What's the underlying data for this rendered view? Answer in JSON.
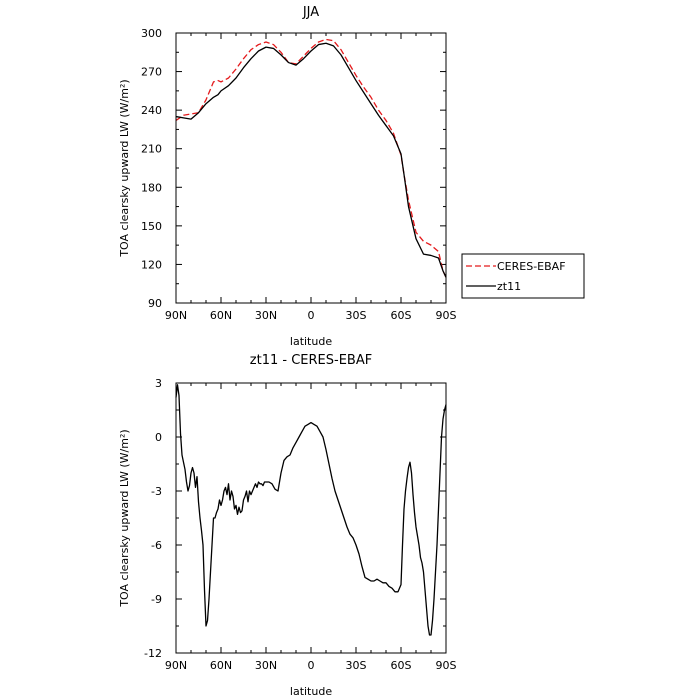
{
  "chart_data": [
    {
      "type": "line",
      "title": "JJA",
      "xlabel": "latitude",
      "ylabel": "TOA clearsky upward LW (W/m²)",
      "xlim": [
        90,
        -90
      ],
      "ylim": [
        90,
        300
      ],
      "x_tick_values": [
        90,
        60,
        30,
        0,
        -30,
        -60,
        -90
      ],
      "x_tick_labels": [
        "90N",
        "60N",
        "30N",
        "0",
        "30S",
        "60S",
        "90S"
      ],
      "y_ticks": [
        90,
        120,
        150,
        180,
        210,
        240,
        270,
        300
      ],
      "legend": {
        "placement": "right",
        "entries": [
          "CERES-EBAF",
          "zt11"
        ]
      },
      "series": [
        {
          "name": "CERES-EBAF",
          "color": "#e41a1c",
          "dash": "dashed",
          "x": [
            90,
            85,
            80,
            75,
            70,
            65,
            62,
            60,
            55,
            50,
            45,
            40,
            35,
            30,
            25,
            20,
            15,
            10,
            5,
            0,
            -5,
            -10,
            -15,
            -20,
            -25,
            -30,
            -35,
            -40,
            -45,
            -50,
            -55,
            -60,
            -62,
            -65,
            -70,
            -75,
            -80,
            -85,
            -88,
            -90
          ],
          "values": [
            232,
            236,
            237,
            238,
            248,
            262,
            263,
            262,
            265,
            272,
            280,
            287,
            291,
            293,
            291,
            285,
            277,
            276,
            282,
            288,
            293,
            295,
            294,
            287,
            277,
            267,
            258,
            250,
            240,
            232,
            222,
            205,
            190,
            170,
            145,
            138,
            135,
            130,
            115,
            110
          ]
        },
        {
          "name": "zt11",
          "color": "#000000",
          "dash": "solid",
          "x": [
            90,
            85,
            80,
            75,
            70,
            65,
            62,
            60,
            55,
            50,
            45,
            40,
            35,
            30,
            25,
            20,
            15,
            10,
            5,
            0,
            -5,
            -10,
            -15,
            -20,
            -25,
            -30,
            -35,
            -40,
            -45,
            -50,
            -55,
            -60,
            -62,
            -65,
            -70,
            -75,
            -80,
            -85,
            -88,
            -90
          ],
          "values": [
            235,
            234,
            233,
            238,
            245,
            250,
            252,
            255,
            259,
            265,
            273,
            280,
            286,
            289,
            288,
            283,
            277,
            275,
            280,
            286,
            291,
            292,
            290,
            283,
            273,
            263,
            254,
            245,
            236,
            228,
            220,
            206,
            190,
            165,
            140,
            128,
            127,
            125,
            115,
            110
          ]
        }
      ]
    },
    {
      "type": "line",
      "title": "zt11 - CERES-EBAF",
      "xlabel": "latitude",
      "ylabel": "TOA clearsky upward LW (W/m²)",
      "xlim": [
        90,
        -90
      ],
      "ylim": [
        -12,
        3
      ],
      "x_tick_values": [
        90,
        60,
        30,
        0,
        -30,
        -60,
        -90
      ],
      "x_tick_labels": [
        "90N",
        "60N",
        "30N",
        "0",
        "30S",
        "60S",
        "90S"
      ],
      "y_ticks": [
        -12,
        -9,
        -6,
        -3,
        0,
        3
      ],
      "series": [
        {
          "color": "#000000",
          "x": [
            90,
            89,
            88,
            87,
            86,
            85,
            84,
            83,
            82,
            81,
            80,
            79,
            78,
            77,
            76,
            75,
            74,
            73,
            72,
            71,
            70,
            69,
            68,
            67,
            66,
            65,
            64,
            63,
            62,
            61,
            60,
            59,
            58,
            57,
            56,
            55,
            54,
            53,
            52,
            51,
            50,
            49,
            48,
            47,
            46,
            45,
            44,
            43,
            42,
            41,
            40,
            39,
            38,
            37,
            36,
            35,
            34,
            33,
            32,
            31,
            30,
            28,
            26,
            24,
            22,
            20,
            18,
            16,
            14,
            12,
            10,
            8,
            6,
            4,
            2,
            0,
            -2,
            -4,
            -6,
            -8,
            -10,
            -12,
            -14,
            -16,
            -18,
            -20,
            -22,
            -24,
            -26,
            -28,
            -30,
            -32,
            -34,
            -36,
            -38,
            -40,
            -42,
            -44,
            -46,
            -48,
            -50,
            -52,
            -54,
            -56,
            -58,
            -60,
            -61,
            -62,
            -63,
            -64,
            -65,
            -66,
            -67,
            -68,
            -69,
            -70,
            -71,
            -72,
            -73,
            -74,
            -75,
            -76,
            -77,
            -78,
            -79,
            -80,
            -81,
            -82,
            -83,
            -84,
            -85,
            -86,
            -87,
            -88,
            -89,
            -90
          ],
          "values": [
            2.2,
            2.9,
            2.3,
            0.2,
            -1.0,
            -1.4,
            -1.8,
            -2.5,
            -3.0,
            -2.7,
            -2.0,
            -1.7,
            -2.0,
            -2.8,
            -2.2,
            -3.6,
            -4.5,
            -5.2,
            -6.0,
            -8.5,
            -10.5,
            -10.2,
            -9.0,
            -7.5,
            -6.0,
            -4.5,
            -4.5,
            -4.2,
            -4.0,
            -3.5,
            -3.8,
            -3.5,
            -3.0,
            -2.8,
            -3.2,
            -2.6,
            -3.5,
            -3.0,
            -3.3,
            -4.0,
            -3.8,
            -4.3,
            -3.9,
            -4.2,
            -4.1,
            -3.5,
            -3.3,
            -3.0,
            -3.6,
            -3.0,
            -3.2,
            -3.0,
            -2.8,
            -2.6,
            -2.8,
            -2.5,
            -2.6,
            -2.6,
            -2.7,
            -2.5,
            -2.5,
            -2.5,
            -2.6,
            -2.9,
            -3.0,
            -2.0,
            -1.3,
            -1.1,
            -1.0,
            -0.6,
            -0.3,
            0.0,
            0.3,
            0.6,
            0.7,
            0.8,
            0.7,
            0.6,
            0.3,
            0.0,
            -0.7,
            -1.5,
            -2.3,
            -3.0,
            -3.5,
            -4.0,
            -4.5,
            -5.0,
            -5.4,
            -5.6,
            -6.0,
            -6.5,
            -7.2,
            -7.8,
            -7.9,
            -8.0,
            -8.0,
            -7.9,
            -8.0,
            -8.1,
            -8.1,
            -8.3,
            -8.4,
            -8.6,
            -8.6,
            -8.2,
            -6.0,
            -4.0,
            -3.0,
            -2.3,
            -1.7,
            -1.4,
            -2.0,
            -3.2,
            -4.2,
            -5.0,
            -5.5,
            -6.0,
            -6.7,
            -7.0,
            -7.5,
            -8.5,
            -9.5,
            -10.5,
            -11.0,
            -11.0,
            -10.2,
            -9.0,
            -7.5,
            -6.0,
            -4.0,
            -2.0,
            0.0,
            1.0,
            1.5,
            1.8
          ]
        }
      ]
    }
  ]
}
